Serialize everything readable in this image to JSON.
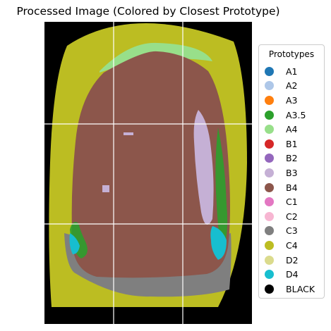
{
  "title": "Processed Image (Colored by Closest Prototype)",
  "image": {
    "background_color": "#000000",
    "grid_color": "#ffffff",
    "regions": {
      "outer_ring": "C4",
      "lower_band": "C3",
      "core": "B4",
      "edge_specks": "A3.5",
      "top_highlight": "A4",
      "right_patches": "B3",
      "side_patches": "D4"
    }
  },
  "legend": {
    "title": "Prototypes",
    "items": [
      {
        "label": "A1",
        "color": "#1f77b4"
      },
      {
        "label": "A2",
        "color": "#aec7e8"
      },
      {
        "label": "A3",
        "color": "#ff7f0e"
      },
      {
        "label": "A3.5",
        "color": "#2ca02c"
      },
      {
        "label": "A4",
        "color": "#98df8a"
      },
      {
        "label": "B1",
        "color": "#d62728"
      },
      {
        "label": "B2",
        "color": "#9467bd"
      },
      {
        "label": "B3",
        "color": "#c5b0d5"
      },
      {
        "label": "B4",
        "color": "#8c564b"
      },
      {
        "label": "C1",
        "color": "#e377c2"
      },
      {
        "label": "C2",
        "color": "#f7b6d2"
      },
      {
        "label": "C3",
        "color": "#7f7f7f"
      },
      {
        "label": "C4",
        "color": "#bcbd22"
      },
      {
        "label": "D2",
        "color": "#dbdb8d"
      },
      {
        "label": "D4",
        "color": "#17becf"
      },
      {
        "label": "BLACK",
        "color": "#000000"
      }
    ]
  }
}
